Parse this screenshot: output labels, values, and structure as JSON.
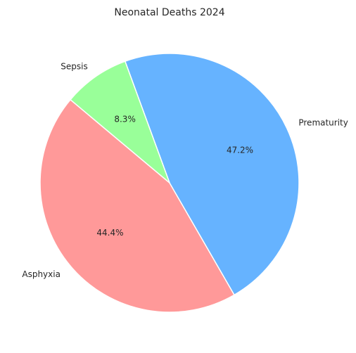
{
  "chart_data": {
    "type": "pie",
    "title": "Neonatal Deaths 2024",
    "start_angle_deg": 140,
    "direction": "counterclockwise",
    "slices": [
      {
        "label": "Asphyxia",
        "value": 44.4,
        "pct_label": "44.4%",
        "color": "#ff9999"
      },
      {
        "label": "Prematurity",
        "value": 47.2,
        "pct_label": "47.2%",
        "color": "#66b3ff"
      },
      {
        "label": "Sepsis",
        "value": 8.3,
        "pct_label": "8.3%",
        "color": "#99ff99"
      }
    ]
  }
}
